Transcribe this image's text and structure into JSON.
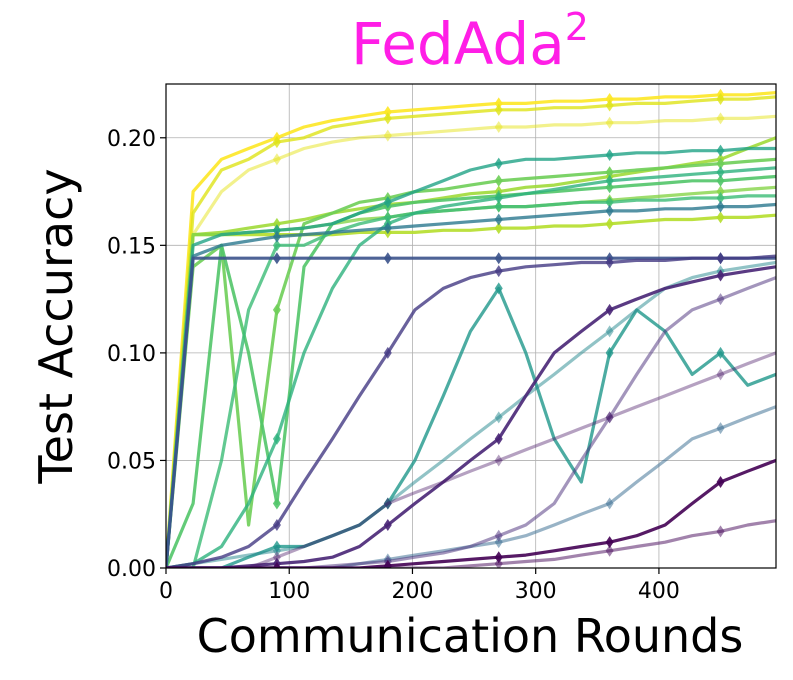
{
  "chart_data": {
    "type": "line",
    "title": "FedAda",
    "title_superscript": "2",
    "title_color": "#ff1ee6",
    "xlabel": "Communication Rounds",
    "ylabel": "Test Accuracy",
    "xlim": [
      0,
      495
    ],
    "ylim": [
      0,
      0.225
    ],
    "xticks": [
      0,
      100,
      200,
      300,
      400
    ],
    "xtick_labels": [
      "0",
      "100",
      "200",
      "300",
      "400"
    ],
    "yticks": [
      0,
      0.05,
      0.1,
      0.15,
      0.2
    ],
    "ytick_labels": [
      "0.00",
      "0.05",
      "0.10",
      "0.15",
      "0.20"
    ],
    "grid": true,
    "legend": "none",
    "colormap": "viridis",
    "x": [
      0,
      22,
      45,
      67,
      90,
      112,
      135,
      157,
      180,
      202,
      225,
      247,
      270,
      292,
      315,
      337,
      360,
      382,
      405,
      427,
      450,
      472,
      495
    ],
    "series": [
      {
        "values": [
          0,
          0.175,
          0.19,
          0.195,
          0.2,
          0.205,
          0.208,
          0.21,
          0.212,
          0.213,
          0.214,
          0.215,
          0.216,
          0.216,
          0.217,
          0.217,
          0.218,
          0.218,
          0.219,
          0.219,
          0.22,
          0.22,
          0.221
        ],
        "color": "#fde725",
        "alpha": 0.9
      },
      {
        "values": [
          0,
          0.165,
          0.185,
          0.19,
          0.198,
          0.2,
          0.205,
          0.207,
          0.209,
          0.21,
          0.211,
          0.212,
          0.213,
          0.213,
          0.214,
          0.214,
          0.215,
          0.216,
          0.216,
          0.217,
          0.218,
          0.218,
          0.219
        ],
        "color": "#dfe318",
        "alpha": 0.8
      },
      {
        "values": [
          0,
          0.155,
          0.175,
          0.185,
          0.19,
          0.195,
          0.198,
          0.2,
          0.201,
          0.202,
          0.203,
          0.204,
          0.205,
          0.205,
          0.206,
          0.206,
          0.207,
          0.207,
          0.208,
          0.208,
          0.209,
          0.209,
          0.21
        ],
        "color": "#e5e419",
        "alpha": 0.5
      },
      {
        "values": [
          0,
          0.155,
          0.155,
          0.155,
          0.155,
          0.155,
          0.155,
          0.156,
          0.156,
          0.156,
          0.157,
          0.157,
          0.158,
          0.158,
          0.159,
          0.159,
          0.16,
          0.161,
          0.162,
          0.162,
          0.163,
          0.163,
          0.164
        ],
        "color": "#b5de2b",
        "alpha": 0.9
      },
      {
        "values": [
          0,
          0.155,
          0.156,
          0.158,
          0.16,
          0.162,
          0.165,
          0.167,
          0.169,
          0.17,
          0.172,
          0.174,
          0.175,
          0.177,
          0.178,
          0.18,
          0.182,
          0.184,
          0.186,
          0.188,
          0.19,
          0.195,
          0.2
        ],
        "color": "#a0da39",
        "alpha": 0.9
      },
      {
        "values": [
          0,
          0.155,
          0.155,
          0.156,
          0.157,
          0.158,
          0.16,
          0.162,
          0.163,
          0.165,
          0.166,
          0.167,
          0.168,
          0.168,
          0.169,
          0.17,
          0.171,
          0.172,
          0.173,
          0.174,
          0.175,
          0.176,
          0.177
        ],
        "color": "#86d549",
        "alpha": 0.8
      },
      {
        "values": [
          0,
          0.14,
          0.15,
          0.02,
          0.12,
          0.16,
          0.165,
          0.17,
          0.172,
          0.175,
          0.176,
          0.178,
          0.18,
          0.181,
          0.182,
          0.183,
          0.184,
          0.185,
          0.186,
          0.187,
          0.188,
          0.189,
          0.19
        ],
        "color": "#6ece58",
        "alpha": 0.9
      },
      {
        "values": [
          0,
          0.03,
          0.15,
          0.1,
          0.03,
          0.14,
          0.16,
          0.165,
          0.168,
          0.17,
          0.171,
          0.172,
          0.173,
          0.174,
          0.175,
          0.176,
          0.177,
          0.178,
          0.179,
          0.18,
          0.18,
          0.181,
          0.182
        ],
        "color": "#52c569",
        "alpha": 0.9
      },
      {
        "values": [
          0,
          0.0,
          0.05,
          0.12,
          0.15,
          0.15,
          0.156,
          0.16,
          0.163,
          0.165,
          0.166,
          0.167,
          0.168,
          0.168,
          0.169,
          0.17,
          0.17,
          0.171,
          0.171,
          0.172,
          0.172,
          0.173,
          0.173
        ],
        "color": "#3bbb75",
        "alpha": 0.8
      },
      {
        "values": [
          0,
          0.002,
          0.01,
          0.03,
          0.06,
          0.1,
          0.13,
          0.15,
          0.16,
          0.165,
          0.168,
          0.17,
          0.172,
          0.174,
          0.176,
          0.178,
          0.18,
          0.181,
          0.182,
          0.183,
          0.184,
          0.185,
          0.186
        ],
        "color": "#2db27d",
        "alpha": 0.8
      },
      {
        "values": [
          0,
          0.15,
          0.155,
          0.156,
          0.157,
          0.158,
          0.16,
          0.165,
          0.17,
          0.175,
          0.18,
          0.185,
          0.188,
          0.19,
          0.19,
          0.191,
          0.192,
          0.193,
          0.193,
          0.194,
          0.194,
          0.195,
          0.195
        ],
        "color": "#20a386",
        "alpha": 0.8
      },
      {
        "values": [
          0,
          0.0,
          0.0,
          0.005,
          0.01,
          0.01,
          0.015,
          0.02,
          0.03,
          0.05,
          0.08,
          0.11,
          0.13,
          0.1,
          0.06,
          0.04,
          0.1,
          0.12,
          0.11,
          0.09,
          0.1,
          0.085,
          0.09
        ],
        "color": "#1f978b",
        "alpha": 0.8
      },
      {
        "values": [
          0,
          0.002,
          0.004,
          0.006,
          0.008,
          0.01,
          0.015,
          0.02,
          0.03,
          0.04,
          0.05,
          0.06,
          0.07,
          0.08,
          0.09,
          0.1,
          0.11,
          0.12,
          0.13,
          0.135,
          0.138,
          0.14,
          0.142
        ],
        "color": "#23888e",
        "alpha": 0.5
      },
      {
        "values": [
          0,
          0.145,
          0.15,
          0.152,
          0.154,
          0.155,
          0.156,
          0.157,
          0.158,
          0.159,
          0.16,
          0.161,
          0.162,
          0.163,
          0.164,
          0.165,
          0.166,
          0.166,
          0.167,
          0.167,
          0.168,
          0.168,
          0.169
        ],
        "color": "#2a788e",
        "alpha": 0.8
      },
      {
        "values": [
          0,
          0.0,
          0.0,
          0.0,
          0.0,
          0.0,
          0.0,
          0.002,
          0.004,
          0.006,
          0.008,
          0.01,
          0.012,
          0.015,
          0.02,
          0.025,
          0.03,
          0.04,
          0.05,
          0.06,
          0.065,
          0.07,
          0.075
        ],
        "color": "#31688e",
        "alpha": 0.5
      },
      {
        "values": [
          0,
          0.144,
          0.144,
          0.144,
          0.144,
          0.144,
          0.144,
          0.144,
          0.144,
          0.144,
          0.144,
          0.144,
          0.144,
          0.144,
          0.144,
          0.144,
          0.144,
          0.144,
          0.144,
          0.144,
          0.144,
          0.144,
          0.144
        ],
        "color": "#3b528b",
        "alpha": 0.9
      },
      {
        "values": [
          0,
          0.002,
          0.005,
          0.01,
          0.02,
          0.04,
          0.06,
          0.08,
          0.1,
          0.12,
          0.13,
          0.135,
          0.138,
          0.14,
          0.141,
          0.142,
          0.142,
          0.143,
          0.143,
          0.144,
          0.144,
          0.144,
          0.145
        ],
        "color": "#443a83",
        "alpha": 0.8
      },
      {
        "values": [
          0,
          0.0,
          0.0,
          0.001,
          0.002,
          0.003,
          0.005,
          0.01,
          0.02,
          0.03,
          0.04,
          0.05,
          0.06,
          0.08,
          0.1,
          0.11,
          0.12,
          0.125,
          0.13,
          0.133,
          0.136,
          0.138,
          0.14
        ],
        "color": "#482576",
        "alpha": 0.9
      },
      {
        "values": [
          0,
          0.0,
          0.0,
          0.0,
          0.0,
          0.0,
          0.001,
          0.002,
          0.003,
          0.005,
          0.007,
          0.01,
          0.015,
          0.02,
          0.03,
          0.05,
          0.07,
          0.09,
          0.11,
          0.12,
          0.125,
          0.13,
          0.135
        ],
        "color": "#472c7a",
        "alpha": 0.5
      },
      {
        "values": [
          0,
          0.0,
          0.0,
          0.0,
          0.0,
          0.0,
          0.0,
          0.0,
          0.001,
          0.002,
          0.003,
          0.004,
          0.005,
          0.006,
          0.008,
          0.01,
          0.012,
          0.015,
          0.02,
          0.03,
          0.04,
          0.045,
          0.05
        ],
        "color": "#440154",
        "alpha": 0.9
      },
      {
        "values": [
          0,
          0.0,
          0.0,
          0.0,
          0.0,
          0.0,
          0.0,
          0.0,
          0.0,
          0.0,
          0.0,
          0.001,
          0.002,
          0.003,
          0.004,
          0.006,
          0.008,
          0.01,
          0.012,
          0.015,
          0.017,
          0.02,
          0.022
        ],
        "color": "#46075a",
        "alpha": 0.5
      },
      {
        "values": [
          0,
          0.0,
          0.0,
          0.0,
          0.005,
          0.01,
          0.015,
          0.02,
          0.03,
          0.035,
          0.04,
          0.045,
          0.05,
          0.055,
          0.06,
          0.065,
          0.07,
          0.075,
          0.08,
          0.085,
          0.09,
          0.095,
          0.1
        ],
        "color": "#471365",
        "alpha": 0.4
      }
    ]
  }
}
